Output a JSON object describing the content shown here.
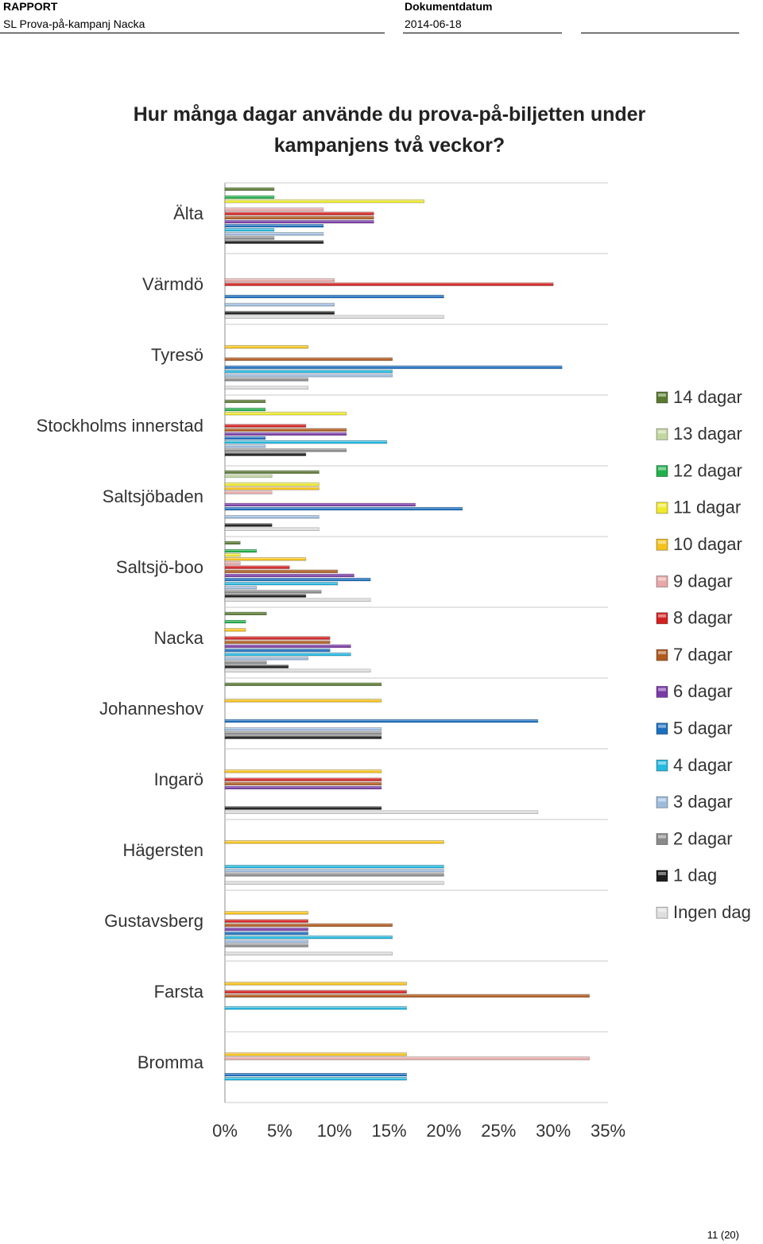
{
  "header": {
    "report_label": "RAPPORT",
    "report_title": "SL Prova-på-kampanj Nacka",
    "date_label": "Dokumentdatum",
    "date_value": "2014-06-18"
  },
  "footer": {
    "page_number": "11 (20)"
  },
  "chart_data": {
    "type": "bar",
    "orientation": "horizontal",
    "title": "Hur många dagar använde du prova-på-biljetten under kampanjens två veckor?",
    "xlabel": "",
    "ylabel": "",
    "xlim": [
      0,
      35
    ],
    "x_ticks": [
      "0%",
      "5%",
      "10%",
      "15%",
      "20%",
      "25%",
      "30%",
      "35%"
    ],
    "legend_position": "right",
    "categories": [
      "Älta",
      "Värmdö",
      "Tyresö",
      "Stockholms innerstad",
      "Saltsjöbaden",
      "Saltsjö-boo",
      "Nacka",
      "Johanneshov",
      "Ingarö",
      "Hägersten",
      "Gustavsberg",
      "Farsta",
      "Bromma"
    ],
    "series": [
      {
        "name": "14 dagar",
        "color": "#5a7a32",
        "values": [
          4.5,
          0,
          0,
          3.7,
          8.6,
          1.4,
          3.8,
          14.3,
          0,
          0,
          0,
          0,
          0
        ]
      },
      {
        "name": "13 dagar",
        "color": "#c4d6a0",
        "values": [
          0,
          0,
          0,
          0,
          4.3,
          0,
          0,
          0,
          0,
          0,
          0,
          0,
          0
        ]
      },
      {
        "name": "12 dagar",
        "color": "#21b04b",
        "values": [
          4.5,
          0,
          0,
          3.7,
          0,
          2.9,
          1.9,
          0,
          0,
          0,
          0,
          0,
          0
        ]
      },
      {
        "name": "11 dagar",
        "color": "#f0ea2a",
        "values": [
          18.2,
          0,
          0,
          11.1,
          8.6,
          1.4,
          0,
          0,
          0,
          0,
          0,
          0,
          0
        ]
      },
      {
        "name": "10 dagar",
        "color": "#f6c21c",
        "values": [
          0,
          0,
          7.6,
          0,
          8.6,
          7.4,
          1.9,
          14.3,
          14.3,
          20,
          7.6,
          16.6,
          16.6
        ]
      },
      {
        "name": "9 dagar",
        "color": "#e7a8a8",
        "values": [
          9,
          10,
          0,
          0,
          4.3,
          1.4,
          0,
          0,
          0,
          0,
          0,
          0,
          33.3
        ]
      },
      {
        "name": "8 dagar",
        "color": "#d42020",
        "values": [
          13.6,
          30,
          0,
          7.4,
          0,
          5.9,
          9.6,
          0,
          14.3,
          0,
          7.6,
          16.6,
          0
        ]
      },
      {
        "name": "7 dagar",
        "color": "#b05a1e",
        "values": [
          13.6,
          0,
          15.3,
          11.1,
          0,
          10.3,
          9.6,
          0,
          14.3,
          0,
          15.3,
          33.3,
          0
        ]
      },
      {
        "name": "6 dagar",
        "color": "#7a3aa8",
        "values": [
          13.6,
          0,
          0,
          11.1,
          17.4,
          11.8,
          11.5,
          0,
          14.3,
          0,
          7.6,
          0,
          0
        ]
      },
      {
        "name": "5 dagar",
        "color": "#1b6fc0",
        "values": [
          9,
          20,
          30.8,
          3.7,
          21.7,
          13.3,
          9.6,
          28.6,
          0,
          0,
          7.6,
          0,
          16.6
        ]
      },
      {
        "name": "4 dagar",
        "color": "#25b9e0",
        "values": [
          4.5,
          0,
          15.3,
          14.8,
          0,
          10.3,
          11.5,
          0,
          0,
          20,
          15.3,
          16.6,
          16.6
        ]
      },
      {
        "name": "3 dagar",
        "color": "#9dbbdc",
        "values": [
          9,
          10,
          15.3,
          3.7,
          8.6,
          2.9,
          7.6,
          14.3,
          0,
          20,
          7.6,
          0,
          0
        ]
      },
      {
        "name": "2 dagar",
        "color": "#8a8a8a",
        "values": [
          4.5,
          0,
          7.6,
          11.1,
          0,
          8.8,
          3.8,
          14.3,
          0,
          20,
          7.6,
          0,
          0
        ]
      },
      {
        "name": "1 dag",
        "color": "#1c1c1c",
        "values": [
          9,
          10,
          0,
          7.4,
          4.3,
          7.4,
          5.8,
          14.3,
          14.3,
          0,
          0,
          0,
          0
        ]
      },
      {
        "name": "Ingen dag",
        "color": "#dedede",
        "values": [
          0,
          20,
          7.6,
          0,
          8.6,
          13.3,
          13.3,
          0,
          28.6,
          20,
          15.3,
          0,
          0
        ]
      }
    ]
  }
}
